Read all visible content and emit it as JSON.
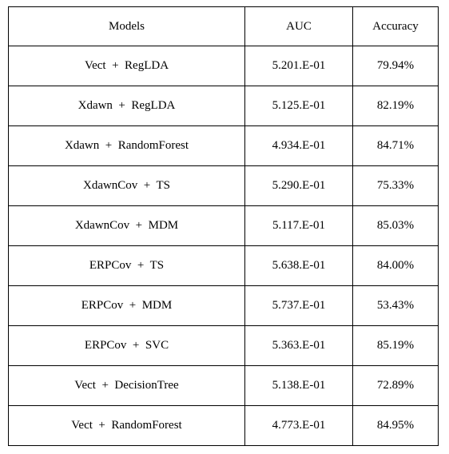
{
  "table": {
    "headers": [
      "Models",
      "AUC",
      "Accuracy"
    ],
    "rows": [
      {
        "model": "Vect  +  RegLDA",
        "auc": "5.201.E-01",
        "accuracy": "79.94%"
      },
      {
        "model": "Xdawn  +  RegLDA",
        "auc": "5.125.E-01",
        "accuracy": "82.19%"
      },
      {
        "model": "Xdawn  +  RandomForest",
        "auc": "4.934.E-01",
        "accuracy": "84.71%"
      },
      {
        "model": "XdawnCov  +  TS",
        "auc": "5.290.E-01",
        "accuracy": "75.33%"
      },
      {
        "model": "XdawnCov  +  MDM",
        "auc": "5.117.E-01",
        "accuracy": "85.03%"
      },
      {
        "model": "ERPCov  +  TS",
        "auc": "5.638.E-01",
        "accuracy": "84.00%"
      },
      {
        "model": "ERPCov  +  MDM",
        "auc": "5.737.E-01",
        "accuracy": "53.43%"
      },
      {
        "model": "ERPCov  +  SVC",
        "auc": "5.363.E-01",
        "accuracy": "85.19%"
      },
      {
        "model": "Vect  +  DecisionTree",
        "auc": "5.138.E-01",
        "accuracy": "72.89%"
      },
      {
        "model": "Vect  +  RandomForest",
        "auc": "4.773.E-01",
        "accuracy": "84.95%"
      }
    ]
  }
}
